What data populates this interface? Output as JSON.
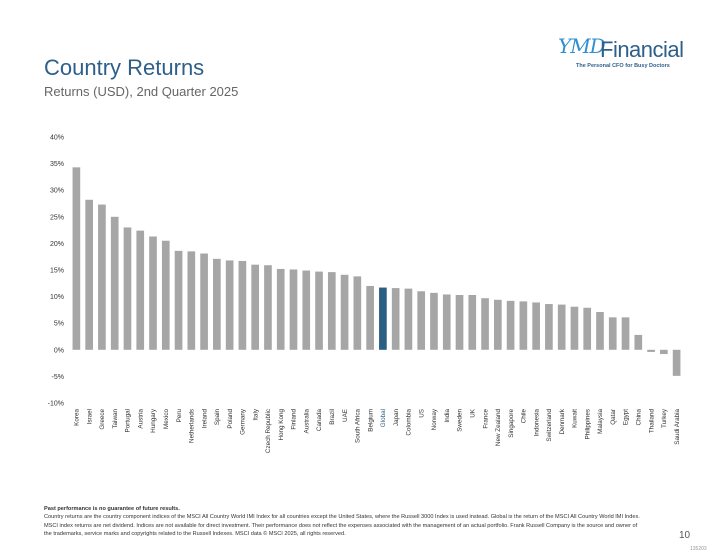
{
  "header": {
    "title": "Country Returns",
    "subtitle": "Returns (USD), 2nd Quarter 2025"
  },
  "logo": {
    "icon_text": "YMD",
    "name": "Financial",
    "tagline": "The Personal CFO for Busy Doctors"
  },
  "chart_data": {
    "type": "bar",
    "title": "",
    "xlabel": "",
    "ylabel": "",
    "ylim": [
      -10,
      40
    ],
    "y_ticks": [
      "40%",
      "35%",
      "30%",
      "25%",
      "20%",
      "15%",
      "10%",
      "5%",
      "0%",
      "-5%",
      "-10%"
    ],
    "grid": false,
    "categories": [
      "Korea",
      "Israel",
      "Greece",
      "Taiwan",
      "Portugal",
      "Austria",
      "Hungary",
      "Mexico",
      "Peru",
      "Netherlands",
      "Ireland",
      "Spain",
      "Poland",
      "Germany",
      "Italy",
      "Czech Republic",
      "Hong Kong",
      "Finland",
      "Australia",
      "Canada",
      "Brazil",
      "UAE",
      "South Africa",
      "Belgium",
      "Global",
      "Japan",
      "Colombia",
      "US",
      "Norway",
      "India",
      "Sweden",
      "UK",
      "France",
      "New Zealand",
      "Singapore",
      "Chile",
      "Indonesia",
      "Switzerland",
      "Denmark",
      "Kuwait",
      "Philippines",
      "Malaysia",
      "Qatar",
      "Egypt",
      "China",
      "Thailand",
      "Turkey",
      "Saudi Arabia"
    ],
    "values": [
      34.3,
      28.2,
      27.3,
      25.0,
      23.0,
      22.4,
      21.3,
      20.5,
      18.6,
      18.5,
      18.1,
      17.1,
      16.8,
      16.7,
      16.0,
      15.9,
      15.2,
      15.1,
      14.9,
      14.7,
      14.6,
      14.1,
      13.8,
      12.0,
      11.7,
      11.6,
      11.5,
      11.0,
      10.7,
      10.4,
      10.3,
      10.3,
      9.7,
      9.4,
      9.2,
      9.1,
      8.9,
      8.6,
      8.5,
      8.1,
      7.9,
      7.1,
      6.1,
      6.1,
      2.8,
      -0.4,
      -0.8,
      -4.9
    ],
    "colors": {
      "bar": "#a6a6a6",
      "highlight": "#2c5f84"
    },
    "highlight_category": "Global"
  },
  "footer": {
    "disclaimer": "Past performance is no guarantee of future results.",
    "notes": "Country returns are the country component indices of the MSCI All Country World IMI Index for all countries except the United States, where the Russell 3000 Index is used instead. Global is the return of the MSCI All Country World IMI Index. MSCI index returns are net dividend. Indices are not available for direct investment. Their performance does not reflect the expenses associated with the management of an actual portfolio. Frank Russell Company is the source and owner of the trademarks, service marks and copyrights related to the Russell Indexes. MSCI data © MSCI 2025, all rights reserved.",
    "page_number": "10",
    "code": "135203"
  }
}
